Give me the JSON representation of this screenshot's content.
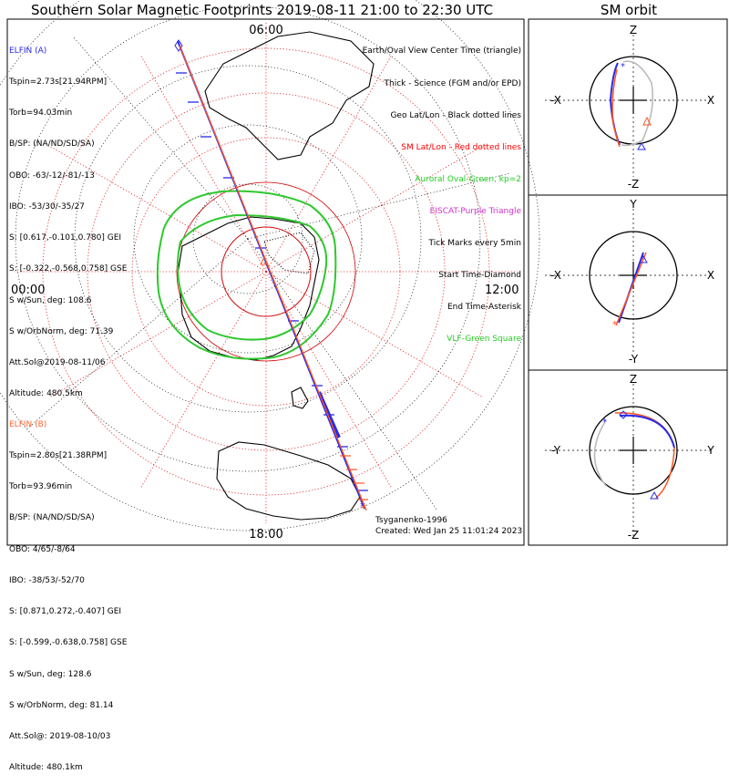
{
  "title": "Southern Solar Magnetic Footprints 2019-08-11 21:00 to 22:30 UTC",
  "sm_orbit_title": "SM orbit",
  "polar_plot": {
    "mlt_labels": {
      "top": "06:00",
      "bottom": "18:00",
      "left": "00:00",
      "right": "12:00"
    }
  },
  "elfin_a": {
    "name": "ELFIN (A)",
    "color": "#2a2ae6",
    "lines": [
      "Tspin=2.73s[21.94RPM]",
      "Torb=94.03min",
      "B/SP: (NA/ND/SD/SA)",
      "OBO: -63/-12/-81/-13",
      "IBO: -53/30/-35/27",
      "S: [0.617,-0.101,0.780] GEI",
      "S: [-0.322,-0.568,0.758] GSE",
      "S w/Sun, deg: 108.6",
      "S w/OrbNorm, deg: 71.39",
      "Att.Sol@2019-08-11/06",
      "Altitude: 480.5km"
    ]
  },
  "elfin_b": {
    "name": "ELFIN (B)",
    "color": "#ff6633",
    "lines": [
      "Tspin=2.80s[21.38RPM]",
      "Torb=93.96min",
      "B/SP: (NA/ND/SD/SA)",
      "OBO: 4/65/-8/64",
      "IBO: -38/53/-52/70",
      "S: [0.871,0.272,-0.407] GEI",
      "S: [-0.599,-0.638,0.758] GSE",
      "S w/Sun, deg: 128.6",
      "S w/OrbNorm, deg: 81.14",
      "Att.Sol@: 2019-08-10/03",
      "Altitude: 480.1km"
    ]
  },
  "legend": [
    {
      "text": "Earth/Oval View Center Time (triangle)",
      "color": "#000000"
    },
    {
      "text": "Thick - Science (FGM and/or EPD)",
      "color": "#000000"
    },
    {
      "text": "Geo Lat/Lon - Black dotted lines",
      "color": "#000000"
    },
    {
      "text": "SM Lat/Lon - Red dotted lines",
      "color": "#ff0000"
    },
    {
      "text": "Auroral Oval-Green, kp=2",
      "color": "#22cc22"
    },
    {
      "text": "EISCAT-Purple Triangle",
      "color": "#cc33cc"
    },
    {
      "text": "Tick Marks every 5min",
      "color": "#000000"
    },
    {
      "text": "Start Time-Diamond",
      "color": "#000000"
    },
    {
      "text": "End Time-Asterisk",
      "color": "#000000"
    },
    {
      "text": "VLF-Green Square",
      "color": "#22cc22"
    }
  ],
  "footer": {
    "tsyganenko": "Tsyganenko-1996",
    "created": "Created: Wed Jan 25 11:01:24 2023"
  },
  "sm_panels": [
    {
      "top": "Z",
      "bottom": "-Z",
      "left": "-X",
      "right": "X"
    },
    {
      "top": "Y",
      "bottom": "-Y",
      "left": "-X",
      "right": "X"
    },
    {
      "top": "Z",
      "bottom": "-Z",
      "left": "-Y",
      "right": "Y"
    }
  ]
}
